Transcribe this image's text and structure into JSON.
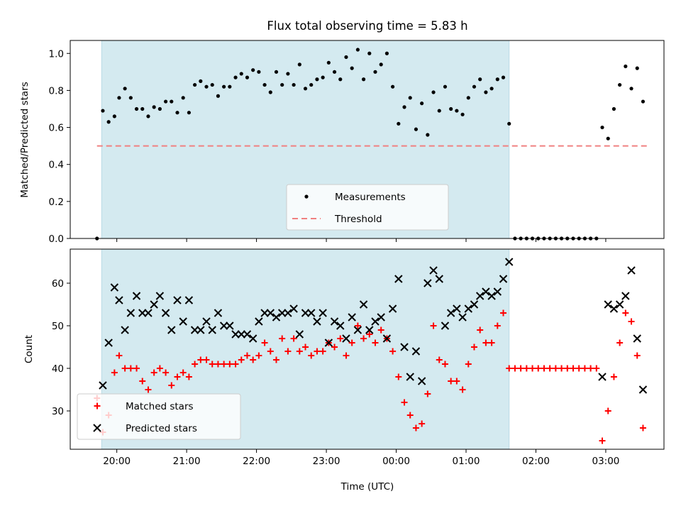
{
  "chart_data": [
    {
      "type": "scatter",
      "title": "Flux total observing time = 5.83 h",
      "ylabel": "Matched/Predicted stars",
      "xlabel": "",
      "ylim": [
        0,
        1.07
      ],
      "yticks": [
        "0.0",
        "0.2",
        "0.4",
        "0.6",
        "0.8",
        "1.0"
      ],
      "yticks_values": [
        0,
        0.2,
        0.4,
        0.6,
        0.8,
        1.0
      ],
      "legend_position": "lower-center",
      "series": [
        {
          "name": "Measurements",
          "marker": "dot",
          "color": "#000000",
          "x": [
            "19:43",
            "19:48",
            "19:53",
            "19:58",
            "20:02",
            "20:07",
            "20:12",
            "20:17",
            "20:22",
            "20:27",
            "20:32",
            "20:37",
            "20:42",
            "20:47",
            "20:52",
            "20:57",
            "21:02",
            "21:07",
            "21:12",
            "21:17",
            "21:22",
            "21:27",
            "21:32",
            "21:37",
            "21:42",
            "21:47",
            "21:52",
            "21:57",
            "22:02",
            "22:07",
            "22:12",
            "22:17",
            "22:22",
            "22:27",
            "22:32",
            "22:37",
            "22:42",
            "22:47",
            "22:52",
            "22:57",
            "23:02",
            "23:07",
            "23:12",
            "23:17",
            "23:22",
            "23:27",
            "23:32",
            "23:37",
            "23:42",
            "23:47",
            "23:52",
            "23:57",
            "00:02",
            "00:07",
            "00:12",
            "00:17",
            "00:22",
            "00:27",
            "00:32",
            "00:37",
            "00:42",
            "00:47",
            "00:52",
            "00:57",
            "01:02",
            "01:07",
            "01:12",
            "01:17",
            "01:22",
            "01:27",
            "01:32",
            "01:37",
            "01:42",
            "01:47",
            "01:52",
            "01:57",
            "02:02",
            "02:07",
            "02:12",
            "02:17",
            "02:22",
            "02:27",
            "02:32",
            "02:37",
            "02:42",
            "02:47",
            "02:52",
            "02:57",
            "03:02",
            "03:07",
            "03:12",
            "03:17",
            "03:22",
            "03:27",
            "03:32"
          ],
          "values": [
            0.0,
            0.69,
            0.63,
            0.66,
            0.76,
            0.81,
            0.76,
            0.7,
            0.7,
            0.66,
            0.71,
            0.7,
            0.74,
            0.74,
            0.68,
            0.76,
            0.68,
            0.83,
            0.85,
            0.82,
            0.83,
            0.77,
            0.82,
            0.82,
            0.87,
            0.89,
            0.87,
            0.91,
            0.9,
            0.83,
            0.79,
            0.9,
            0.83,
            0.89,
            0.83,
            0.94,
            0.81,
            0.83,
            0.86,
            0.87,
            0.95,
            0.9,
            0.86,
            0.98,
            0.92,
            1.02,
            0.86,
            1.0,
            0.9,
            0.94,
            1.0,
            0.82,
            0.62,
            0.71,
            0.76,
            0.59,
            0.73,
            0.56,
            0.79,
            0.69,
            0.82,
            0.7,
            0.69,
            0.67,
            0.76,
            0.82,
            0.86,
            0.79,
            0.81,
            0.86,
            0.87,
            0.62,
            0.0,
            0.0,
            0.0,
            0.0,
            0.0,
            0.0,
            0.0,
            0.0,
            0.0,
            0.0,
            0.0,
            0.0,
            0.0,
            0.0,
            0.0,
            0.6,
            0.54,
            0.7,
            0.83,
            0.93,
            0.81,
            0.92,
            0.74
          ]
        },
        {
          "name": "Threshold",
          "marker": "dashed-line",
          "color": "#f08080",
          "x": [
            "19:43",
            "03:37"
          ],
          "values": [
            0.5,
            0.5
          ]
        }
      ],
      "shaded_span": {
        "x_start": "19:47",
        "x_end": "01:37",
        "color": "#d4eaf0"
      }
    },
    {
      "type": "scatter",
      "title": "",
      "ylabel": "Count",
      "xlabel": "Time (UTC)",
      "ylim": [
        21,
        68
      ],
      "yticks": [
        "30",
        "40",
        "50",
        "60"
      ],
      "yticks_values": [
        30,
        40,
        50,
        60
      ],
      "xticks": [
        "20:00",
        "21:00",
        "22:00",
        "23:00",
        "00:00",
        "01:00",
        "02:00",
        "03:00"
      ],
      "xticks_values": [
        "20:00",
        "21:00",
        "22:00",
        "23:00",
        "00:00",
        "01:00",
        "02:00",
        "03:00"
      ],
      "legend_position": "lower-left",
      "series": [
        {
          "name": "Matched stars",
          "marker": "plus",
          "color": "#ff0000",
          "x": [
            "19:43",
            "19:48",
            "19:53",
            "19:58",
            "20:02",
            "20:07",
            "20:12",
            "20:17",
            "20:22",
            "20:27",
            "20:32",
            "20:37",
            "20:42",
            "20:47",
            "20:52",
            "20:57",
            "21:02",
            "21:07",
            "21:12",
            "21:17",
            "21:22",
            "21:27",
            "21:32",
            "21:37",
            "21:42",
            "21:47",
            "21:52",
            "21:57",
            "22:02",
            "22:07",
            "22:12",
            "22:17",
            "22:22",
            "22:27",
            "22:32",
            "22:37",
            "22:42",
            "22:47",
            "22:52",
            "22:57",
            "23:02",
            "23:07",
            "23:12",
            "23:17",
            "23:22",
            "23:27",
            "23:32",
            "23:37",
            "23:42",
            "23:47",
            "23:52",
            "23:57",
            "00:02",
            "00:07",
            "00:12",
            "00:17",
            "00:22",
            "00:27",
            "00:32",
            "00:37",
            "00:42",
            "00:47",
            "00:52",
            "00:57",
            "01:02",
            "01:07",
            "01:12",
            "01:17",
            "01:22",
            "01:27",
            "01:32",
            "01:37",
            "01:42",
            "01:47",
            "01:52",
            "01:57",
            "02:02",
            "02:07",
            "02:12",
            "02:17",
            "02:22",
            "02:27",
            "02:32",
            "02:37",
            "02:42",
            "02:47",
            "02:52",
            "02:57",
            "03:02",
            "03:07",
            "03:12",
            "03:17",
            "03:22",
            "03:27",
            "03:32"
          ],
          "values": [
            33,
            25,
            29,
            39,
            43,
            40,
            40,
            40,
            37,
            35,
            39,
            40,
            39,
            36,
            38,
            39,
            38,
            41,
            42,
            42,
            41,
            41,
            41,
            41,
            41,
            42,
            43,
            42,
            43,
            46,
            44,
            42,
            47,
            44,
            47,
            44,
            45,
            43,
            44,
            44,
            46,
            45,
            47,
            43,
            46,
            50,
            47,
            48,
            46,
            49,
            47,
            44,
            38,
            32,
            29,
            26,
            27,
            34,
            50,
            42,
            41,
            37,
            37,
            35,
            41,
            45,
            49,
            46,
            46,
            50,
            53,
            40,
            40,
            40,
            40,
            40,
            40,
            40,
            40,
            40,
            40,
            40,
            40,
            40,
            40,
            40,
            40,
            23,
            30,
            38,
            46,
            53,
            51,
            43,
            26
          ]
        },
        {
          "name": "Predicted stars",
          "marker": "x",
          "color": "#000000",
          "x": [
            "19:48",
            "19:53",
            "19:58",
            "20:02",
            "20:07",
            "20:12",
            "20:17",
            "20:22",
            "20:27",
            "20:32",
            "20:37",
            "20:42",
            "20:47",
            "20:52",
            "20:57",
            "21:02",
            "21:07",
            "21:12",
            "21:17",
            "21:22",
            "21:27",
            "21:32",
            "21:37",
            "21:42",
            "21:47",
            "21:52",
            "21:57",
            "22:02",
            "22:07",
            "22:12",
            "22:17",
            "22:22",
            "22:27",
            "22:32",
            "22:37",
            "22:42",
            "22:47",
            "22:52",
            "22:57",
            "23:02",
            "23:07",
            "23:12",
            "23:17",
            "23:22",
            "23:27",
            "23:32",
            "23:37",
            "23:42",
            "23:47",
            "23:52",
            "23:57",
            "00:02",
            "00:07",
            "00:12",
            "00:17",
            "00:22",
            "00:27",
            "00:32",
            "00:37",
            "00:42",
            "00:47",
            "00:52",
            "00:57",
            "01:02",
            "01:07",
            "01:12",
            "01:17",
            "01:22",
            "01:27",
            "01:32",
            "01:37",
            "02:57",
            "03:02",
            "03:07",
            "03:12",
            "03:17",
            "03:22",
            "03:27",
            "03:32"
          ],
          "values": [
            36,
            46,
            59,
            56,
            49,
            53,
            57,
            53,
            53,
            55,
            57,
            53,
            49,
            56,
            51,
            56,
            49,
            49,
            51,
            49,
            53,
            50,
            50,
            48,
            48,
            48,
            47,
            51,
            53,
            53,
            52,
            53,
            53,
            54,
            48,
            53,
            53,
            51,
            53,
            46,
            51,
            50,
            47,
            52,
            49,
            55,
            49,
            51,
            52,
            47,
            54,
            61,
            45,
            38,
            44,
            37,
            60,
            63,
            61,
            50,
            53,
            54,
            52,
            54,
            55,
            57,
            58,
            57,
            58,
            61,
            65,
            38,
            55,
            54,
            55,
            57,
            63,
            47,
            35
          ]
        }
      ],
      "shaded_span": {
        "x_start": "19:47",
        "x_end": "01:37",
        "color": "#d4eaf0"
      }
    }
  ]
}
